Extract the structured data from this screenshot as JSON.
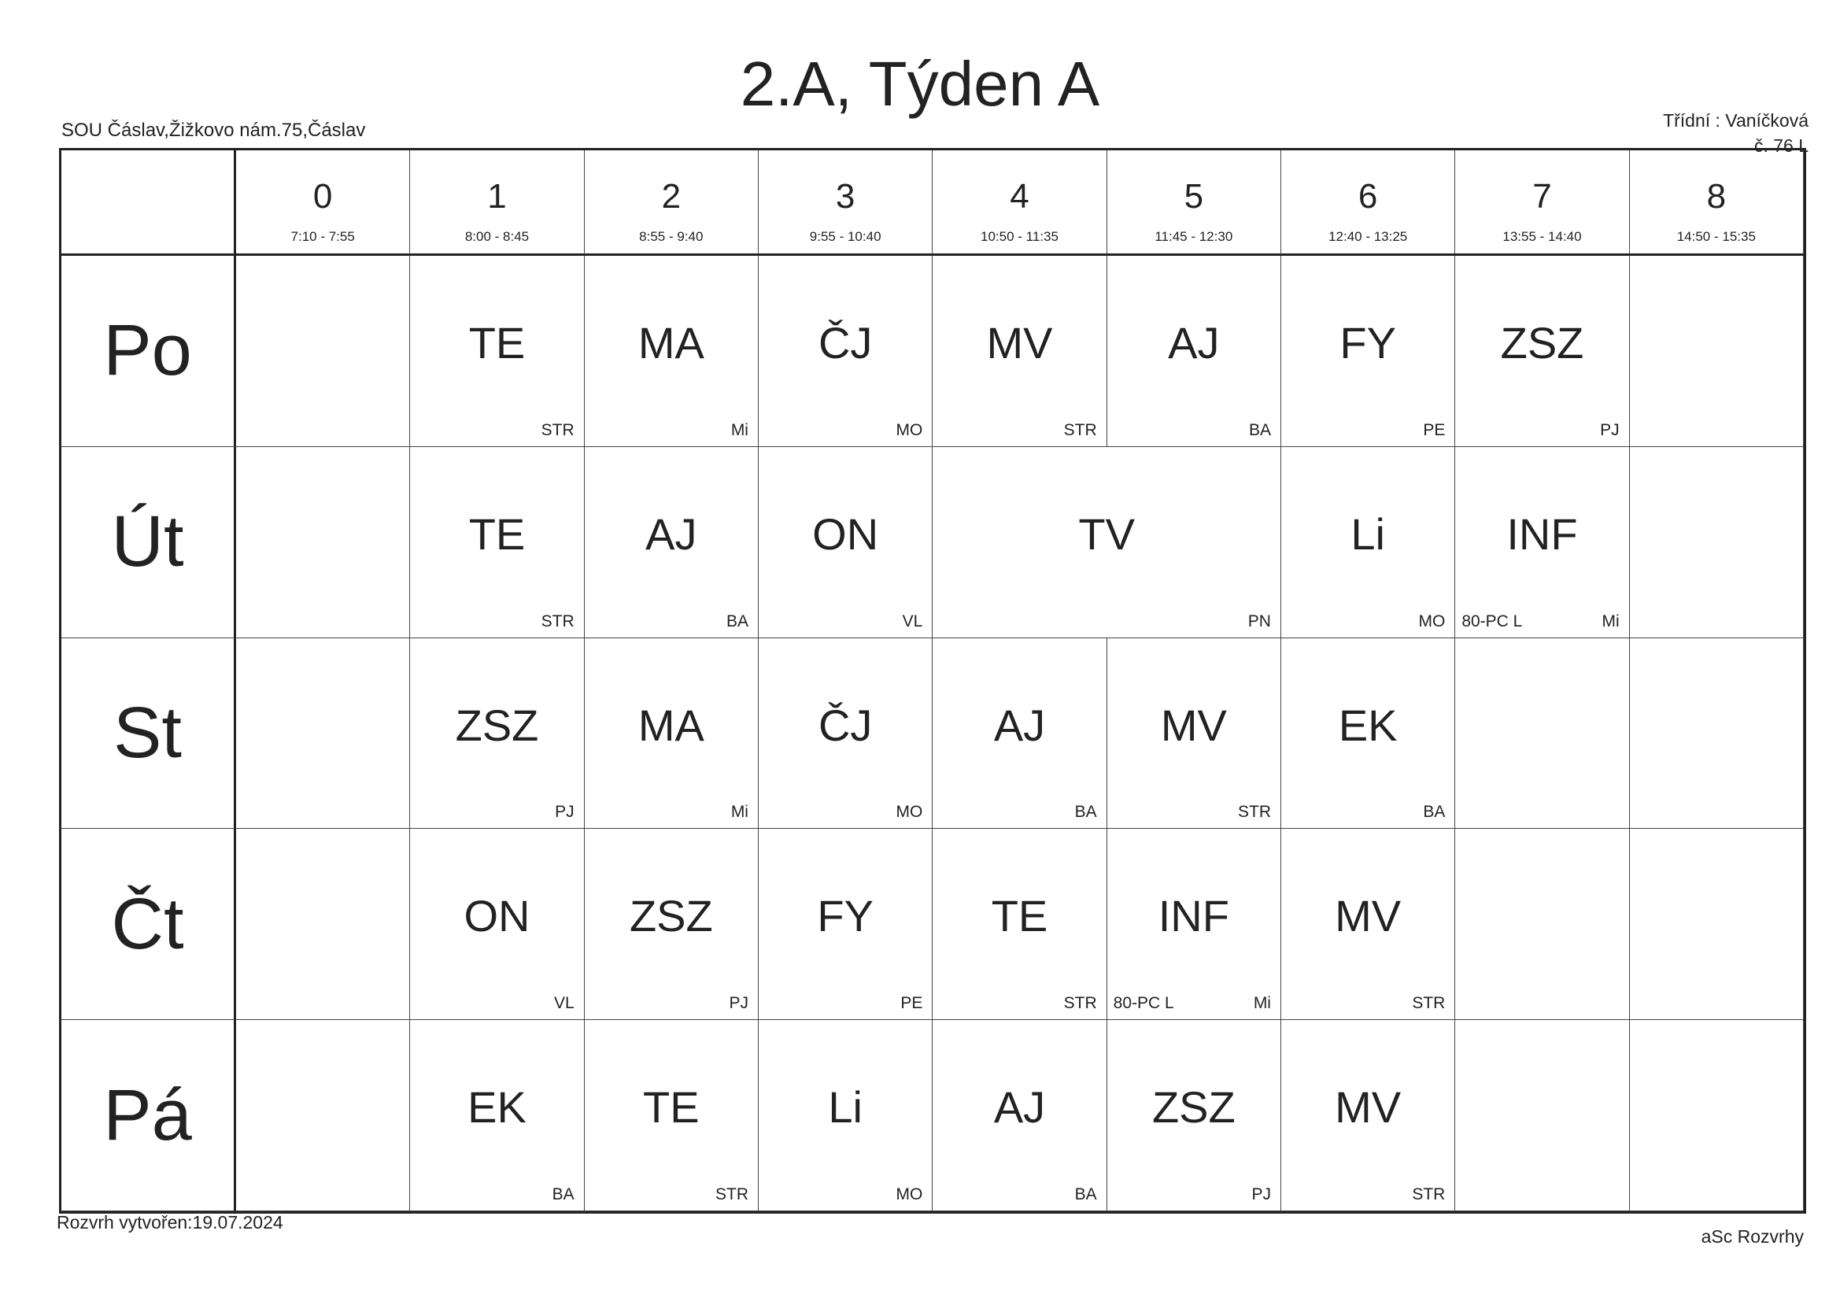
{
  "header": {
    "title": "2.A, Týden A",
    "school": "SOU Čáslav,Žižkovo nám.75,Čáslav",
    "class_teacher": "Třídní : Vaníčková",
    "room": "č. 76 L"
  },
  "periods": [
    {
      "number": 0,
      "time": "7:10 - 7:55"
    },
    {
      "number": 1,
      "time": "8:00 - 8:45"
    },
    {
      "number": 2,
      "time": "8:55 - 9:40"
    },
    {
      "number": 3,
      "time": "9:55 - 10:40"
    },
    {
      "number": 4,
      "time": "10:50 - 11:35"
    },
    {
      "number": 5,
      "time": "11:45 - 12:30"
    },
    {
      "number": 6,
      "time": "12:40 - 13:25"
    },
    {
      "number": 7,
      "time": "13:55 - 14:40"
    },
    {
      "number": 8,
      "time": "14:50 - 15:35"
    }
  ],
  "days": [
    {
      "name": "Po",
      "lessons": [
        null,
        {
          "subject": "TE",
          "teacher": "STR"
        },
        {
          "subject": "MA",
          "teacher": "Mi"
        },
        {
          "subject": "ČJ",
          "teacher": "MO"
        },
        {
          "subject": "MV",
          "teacher": "STR"
        },
        {
          "subject": "AJ",
          "teacher": "BA"
        },
        {
          "subject": "FY",
          "teacher": "PE"
        },
        {
          "subject": "ZSZ",
          "teacher": "PJ"
        },
        null
      ]
    },
    {
      "name": "Út",
      "lessons": [
        null,
        {
          "subject": "TE",
          "teacher": "STR"
        },
        {
          "subject": "AJ",
          "teacher": "BA"
        },
        {
          "subject": "ON",
          "teacher": "VL"
        },
        {
          "subject": "TV",
          "teacher": "PN",
          "span": 2
        },
        {
          "subject": "Li",
          "teacher": "MO"
        },
        {
          "subject": "INF",
          "teacher": "Mi",
          "room": "80-PC L"
        },
        null
      ]
    },
    {
      "name": "St",
      "lessons": [
        null,
        {
          "subject": "ZSZ",
          "teacher": "PJ"
        },
        {
          "subject": "MA",
          "teacher": "Mi"
        },
        {
          "subject": "ČJ",
          "teacher": "MO"
        },
        {
          "subject": "AJ",
          "teacher": "BA"
        },
        {
          "subject": "MV",
          "teacher": "STR"
        },
        {
          "subject": "EK",
          "teacher": "BA"
        },
        null,
        null
      ]
    },
    {
      "name": "Čt",
      "lessons": [
        null,
        {
          "subject": "ON",
          "teacher": "VL"
        },
        {
          "subject": "ZSZ",
          "teacher": "PJ"
        },
        {
          "subject": "FY",
          "teacher": "PE"
        },
        {
          "subject": "TE",
          "teacher": "STR"
        },
        {
          "subject": "INF",
          "teacher": "Mi",
          "room": "80-PC L"
        },
        {
          "subject": "MV",
          "teacher": "STR"
        },
        null,
        null
      ]
    },
    {
      "name": "Pá",
      "lessons": [
        null,
        {
          "subject": "EK",
          "teacher": "BA"
        },
        {
          "subject": "TE",
          "teacher": "STR"
        },
        {
          "subject": "Li",
          "teacher": "MO"
        },
        {
          "subject": "AJ",
          "teacher": "BA"
        },
        {
          "subject": "ZSZ",
          "teacher": "PJ"
        },
        {
          "subject": "MV",
          "teacher": "STR"
        },
        null,
        null
      ]
    }
  ],
  "footer": {
    "created": "Rozvrh vytvořen:19.07.2024",
    "software": "aSc Rozvrhy"
  }
}
